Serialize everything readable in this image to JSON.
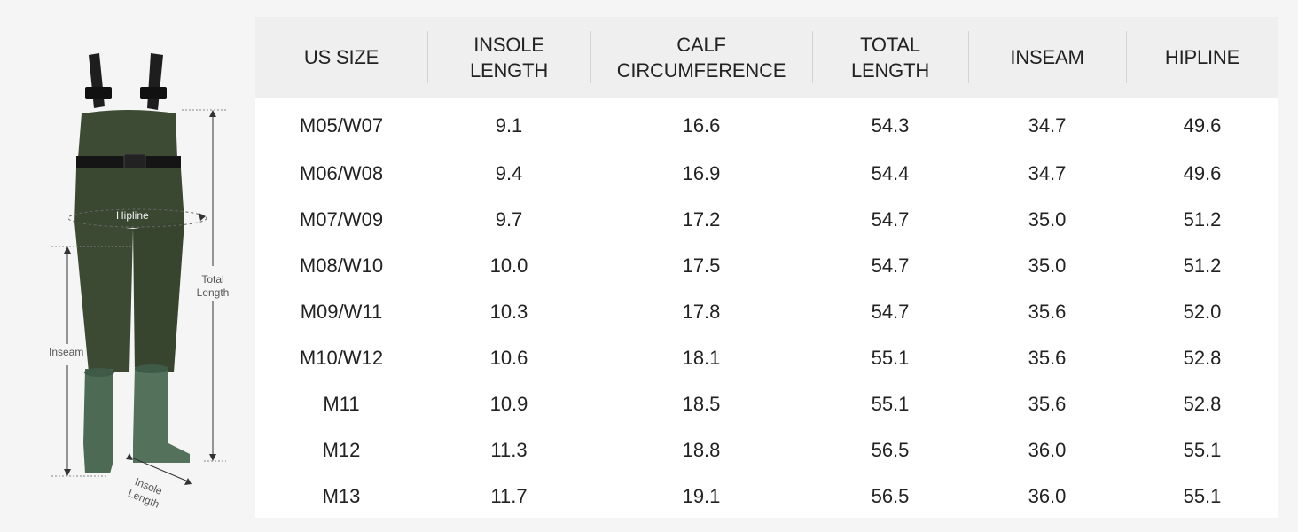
{
  "figure": {
    "labels": {
      "hipline": "Hipline",
      "total_length": "Total\nLength",
      "inseam": "Inseam",
      "insole_length": "Insole\nLength"
    }
  },
  "size_table": {
    "headers": [
      "US SIZE",
      "INSOLE\nLENGTH",
      "CALF\nCIRCUMFERENCE",
      "TOTAL\nLENGTH",
      "INSEAM",
      "HIPLINE"
    ],
    "rows": [
      [
        "M05/W07",
        "9.1",
        "16.6",
        "54.3",
        "34.7",
        "49.6"
      ],
      [
        "M06/W08",
        "9.4",
        "16.9",
        "54.4",
        "34.7",
        "49.6"
      ],
      [
        "M07/W09",
        "9.7",
        "17.2",
        "54.7",
        "35.0",
        "51.2"
      ],
      [
        "M08/W10",
        "10.0",
        "17.5",
        "54.7",
        "35.0",
        "51.2"
      ],
      [
        "M09/W11",
        "10.3",
        "17.8",
        "54.7",
        "35.6",
        "52.0"
      ],
      [
        "M10/W12",
        "10.6",
        "18.1",
        "55.1",
        "35.6",
        "52.8"
      ],
      [
        "M11",
        "10.9",
        "18.5",
        "55.1",
        "35.6",
        "52.8"
      ],
      [
        "M12",
        "11.3",
        "18.8",
        "56.5",
        "36.0",
        "55.1"
      ],
      [
        "M13",
        "11.7",
        "19.1",
        "56.5",
        "36.0",
        "55.1"
      ]
    ]
  },
  "colors": {
    "wader_body": "#3c4a33",
    "boot": "#4d6a55",
    "header_bg": "#efefef",
    "table_bg": "#ffffff",
    "page_bg": "#f5f5f5"
  }
}
